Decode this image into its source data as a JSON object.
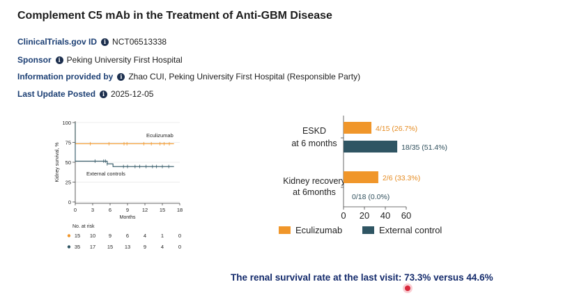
{
  "page": {
    "title": "Complement C5 mAb in the Treatment of Anti-GBM Disease",
    "meta": {
      "trial_id_label": "ClinicalTrials.gov ID",
      "trial_id_value": "NCT06513338",
      "sponsor_label": "Sponsor",
      "sponsor_value": "Peking University First Hospital",
      "info_label": "Information provided by",
      "info_value": "Zhao CUI, Peking University First Hospital (Responsible Party)",
      "update_label": "Last Update Posted",
      "update_value": "2025-12-05"
    },
    "footer": "The renal survival rate at the last visit: 73.3% versus 44.6%"
  },
  "colors": {
    "eculizumab": "#f0962a",
    "external": "#2f5563",
    "label_blue": "#1b3e73"
  },
  "chart_data": [
    {
      "type": "line",
      "title": "",
      "xlabel": "Months",
      "ylabel": "Kidney survival, %",
      "xlim": [
        0,
        18
      ],
      "ylim": [
        0,
        100
      ],
      "xticks": [
        "0",
        "3",
        "6",
        "9",
        "12",
        "15",
        "18"
      ],
      "yticks": [
        "0",
        "25",
        "50",
        "75",
        "100"
      ],
      "series": [
        {
          "name": "Eculizumab",
          "x": [
            0,
            0.6,
            17
          ],
          "y": [
            100,
            73.3,
            73.3
          ]
        },
        {
          "name": "External controls",
          "x": [
            0,
            0.2,
            5.5,
            6.5,
            17
          ],
          "y": [
            100,
            51.4,
            51.4,
            44.6,
            44.6
          ]
        }
      ],
      "risk_table": {
        "label": "No. at risk",
        "rows": [
          {
            "name": "Eculizumab",
            "values": [
              "15",
              "10",
              "9",
              "6",
              "4",
              "1",
              "0"
            ]
          },
          {
            "name": "External controls",
            "values": [
              "35",
              "17",
              "15",
              "13",
              "9",
              "4",
              "0"
            ]
          }
        ]
      }
    },
    {
      "type": "bar",
      "orientation": "horizontal",
      "categories": [
        "ESKD\nat 6 months",
        "Kidney recovery\nat 6months"
      ],
      "series": [
        {
          "name": "Eculizumab",
          "values": [
            26.7,
            33.3
          ],
          "labels": [
            "4/15 (26.7%)",
            "2/6 (33.3%)"
          ]
        },
        {
          "name": "External control",
          "values": [
            51.4,
            0.0
          ],
          "labels": [
            "18/35 (51.4%)",
            "0/18 (0.0%)"
          ]
        }
      ],
      "xlim": [
        0,
        60
      ],
      "xticks": [
        "0",
        "20",
        "40",
        "60"
      ],
      "legend": [
        "Eculizumab",
        "External control"
      ]
    }
  ]
}
